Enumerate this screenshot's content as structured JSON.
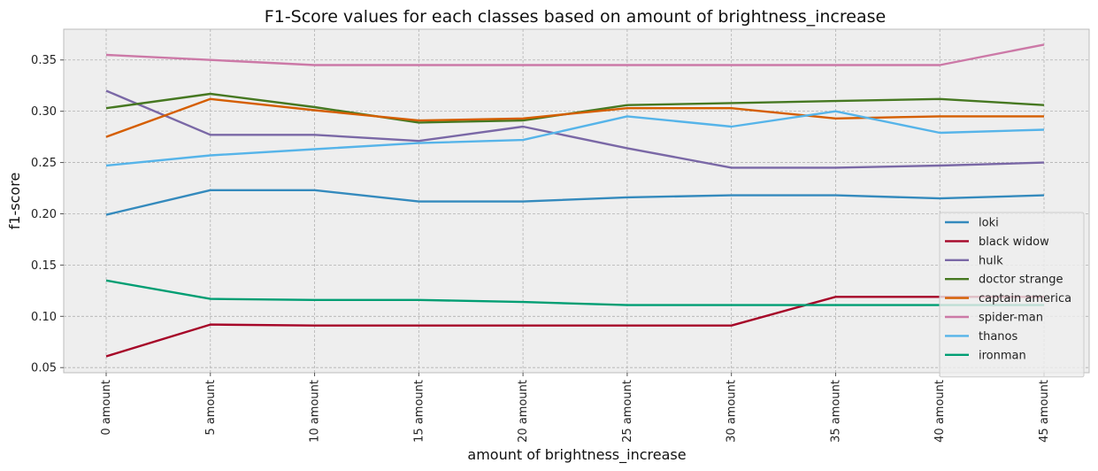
{
  "chart_data": {
    "type": "line",
    "title": "F1-Score values for each classes based on amount of brightness_increase",
    "xlabel": "amount of brightness_increase",
    "ylabel": "f1-score",
    "categories": [
      "0 amount",
      "5 amount",
      "10 amount",
      "15 amount",
      "20 amount",
      "25 amount",
      "30 amount",
      "35 amount",
      "40 amount",
      "45 amount"
    ],
    "ylim": [
      0.045,
      0.38
    ],
    "yticks": [
      "0.05",
      "0.10",
      "0.15",
      "0.20",
      "0.25",
      "0.30",
      "0.35"
    ],
    "grid": true,
    "legend_position": "lower-right",
    "series": [
      {
        "name": "loki",
        "color": "#348ABD",
        "values": [
          0.199,
          0.223,
          0.223,
          0.212,
          0.212,
          0.216,
          0.218,
          0.218,
          0.215,
          0.218
        ]
      },
      {
        "name": "black widow",
        "color": "#A60628",
        "values": [
          0.061,
          0.092,
          0.091,
          0.091,
          0.091,
          0.091,
          0.091,
          0.119,
          0.119,
          0.119
        ]
      },
      {
        "name": "hulk",
        "color": "#7A68A6",
        "values": [
          0.32,
          0.277,
          0.277,
          0.271,
          0.285,
          0.264,
          0.245,
          0.245,
          0.247,
          0.25
        ]
      },
      {
        "name": "doctor strange",
        "color": "#467821",
        "values": [
          0.303,
          0.317,
          0.304,
          0.289,
          0.291,
          0.306,
          0.308,
          0.31,
          0.312,
          0.306
        ]
      },
      {
        "name": "captain america",
        "color": "#D55E00",
        "values": [
          0.275,
          0.312,
          0.301,
          0.291,
          0.293,
          0.303,
          0.303,
          0.293,
          0.295,
          0.295
        ]
      },
      {
        "name": "spider-man",
        "color": "#CC79A7",
        "values": [
          0.355,
          0.35,
          0.345,
          0.345,
          0.345,
          0.345,
          0.345,
          0.345,
          0.345,
          0.365
        ]
      },
      {
        "name": "thanos",
        "color": "#56B4E9",
        "values": [
          0.247,
          0.257,
          0.263,
          0.269,
          0.272,
          0.295,
          0.285,
          0.3,
          0.279,
          0.282
        ]
      },
      {
        "name": "ironman",
        "color": "#009E73",
        "values": [
          0.135,
          0.117,
          0.116,
          0.116,
          0.114,
          0.111,
          0.111,
          0.111,
          0.111,
          0.111
        ]
      }
    ]
  }
}
